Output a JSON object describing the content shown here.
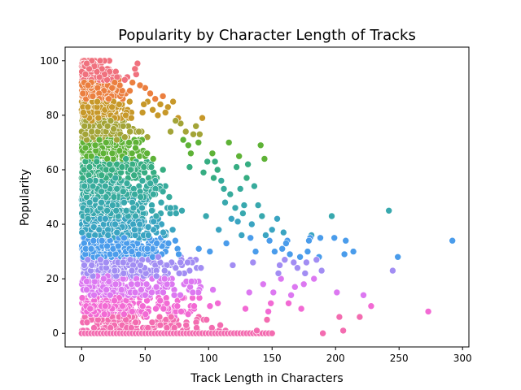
{
  "chart_data": {
    "type": "scatter",
    "title": "Popularity by Character Length of Tracks",
    "xlabel": "Track Length in Characters",
    "ylabel": "Popularity",
    "xlim": [
      -13,
      305
    ],
    "ylim": [
      -5,
      105
    ],
    "xticks": [
      0,
      50,
      100,
      150,
      200,
      250,
      300
    ],
    "yticks": [
      0,
      20,
      40,
      60,
      80,
      100
    ],
    "grid": false,
    "legend": "none",
    "hue": "popularity",
    "palette": [
      "#f0717e",
      "#eb7f3f",
      "#c79829",
      "#a3a437",
      "#5eb236",
      "#36ad82",
      "#37ab9c",
      "#38a8ae",
      "#3aa4c1",
      "#4a9ceb",
      "#a28df3",
      "#dc78f1",
      "#f26ad4",
      "#f36cb0"
    ],
    "points": [
      [
        292,
        34
      ],
      [
        273,
        8
      ],
      [
        249,
        28
      ],
      [
        245,
        23
      ],
      [
        242,
        45
      ],
      [
        228,
        10
      ],
      [
        222,
        14
      ],
      [
        219,
        6
      ],
      [
        214,
        30
      ],
      [
        208,
        34
      ],
      [
        207,
        29
      ],
      [
        206,
        1
      ],
      [
        203,
        6
      ],
      [
        201,
        15
      ],
      [
        199,
        35
      ],
      [
        197,
        43
      ],
      [
        190,
        0
      ],
      [
        189,
        23
      ],
      [
        188,
        35
      ],
      [
        187,
        28
      ],
      [
        185,
        27
      ],
      [
        183,
        20
      ],
      [
        181,
        36
      ],
      [
        180,
        35
      ],
      [
        179,
        34
      ],
      [
        178,
        30
      ],
      [
        177,
        26
      ],
      [
        176,
        22
      ],
      [
        175,
        18
      ],
      [
        173,
        9
      ],
      [
        172,
        28
      ],
      [
        170,
        24
      ],
      [
        168,
        17
      ],
      [
        167,
        26
      ],
      [
        165,
        14
      ],
      [
        164,
        29
      ],
      [
        163,
        11
      ],
      [
        162,
        34
      ],
      [
        161,
        33
      ],
      [
        160,
        27
      ],
      [
        159,
        37
      ],
      [
        158,
        31
      ],
      [
        157,
        20
      ],
      [
        156,
        25
      ],
      [
        155,
        22
      ],
      [
        154,
        42
      ],
      [
        152,
        30
      ],
      [
        151,
        15
      ],
      [
        150,
        38
      ],
      [
        149,
        11
      ],
      [
        148,
        34
      ],
      [
        147,
        8
      ],
      [
        146,
        5
      ],
      [
        145,
        36
      ],
      [
        144,
        64
      ],
      [
        143,
        18
      ],
      [
        142,
        43
      ],
      [
        141,
        69
      ],
      [
        139,
        47
      ],
      [
        138,
        1
      ],
      [
        137,
        30
      ],
      [
        136,
        54
      ],
      [
        135,
        26
      ],
      [
        134,
        40
      ],
      [
        133,
        35
      ],
      [
        132,
        15
      ],
      [
        131,
        62
      ],
      [
        130,
        57
      ],
      [
        129,
        9
      ],
      [
        128,
        47
      ],
      [
        127,
        44
      ],
      [
        126,
        36
      ],
      [
        125,
        53
      ],
      [
        124,
        65
      ],
      [
        123,
        41
      ],
      [
        122,
        61
      ],
      [
        121,
        46
      ],
      [
        119,
        25
      ],
      [
        118,
        42
      ],
      [
        117,
        51
      ],
      [
        116,
        70
      ],
      [
        114,
        33
      ],
      [
        113,
        48
      ],
      [
        112,
        53
      ],
      [
        110,
        56
      ],
      [
        108,
        38
      ],
      [
        107,
        60
      ],
      [
        105,
        63
      ],
      [
        104,
        57
      ],
      [
        103,
        66
      ],
      [
        101,
        30
      ],
      [
        99,
        63
      ],
      [
        98,
        43
      ],
      [
        96,
        59
      ],
      [
        95,
        79
      ],
      [
        93,
        73
      ],
      [
        92,
        70
      ],
      [
        90,
        76
      ],
      [
        88,
        73
      ],
      [
        86,
        66
      ],
      [
        85,
        61
      ],
      [
        84,
        69
      ],
      [
        82,
        74
      ],
      [
        80,
        71
      ],
      [
        79,
        45
      ],
      [
        78,
        77
      ],
      [
        76,
        79
      ],
      [
        74,
        78
      ],
      [
        72,
        85
      ],
      [
        70,
        74
      ],
      [
        69,
        50
      ],
      [
        68,
        83
      ],
      [
        66,
        81
      ],
      [
        64,
        87
      ],
      [
        62,
        84
      ],
      [
        60,
        80
      ],
      [
        58,
        86
      ],
      [
        56,
        82
      ],
      [
        54,
        88
      ],
      [
        52,
        85
      ],
      [
        50,
        90
      ],
      [
        49,
        84
      ],
      [
        48,
        81
      ],
      [
        46,
        91
      ],
      [
        44,
        99
      ],
      [
        43,
        95
      ],
      [
        42,
        97
      ],
      [
        40,
        92
      ],
      [
        38,
        89
      ],
      [
        36,
        94
      ],
      [
        34,
        93
      ],
      [
        32,
        89
      ],
      [
        30,
        91
      ],
      [
        28,
        94
      ],
      [
        26,
        92
      ],
      [
        24,
        90
      ],
      [
        22,
        96
      ],
      [
        20,
        93
      ],
      [
        18,
        95
      ],
      [
        16,
        97
      ],
      [
        14,
        94
      ],
      [
        12,
        96
      ],
      [
        10,
        98
      ],
      [
        8,
        100
      ],
      [
        6,
        97
      ],
      [
        4,
        99
      ],
      [
        3,
        95
      ],
      [
        2,
        92
      ],
      [
        1,
        88
      ],
      [
        5,
        91
      ]
    ]
  }
}
